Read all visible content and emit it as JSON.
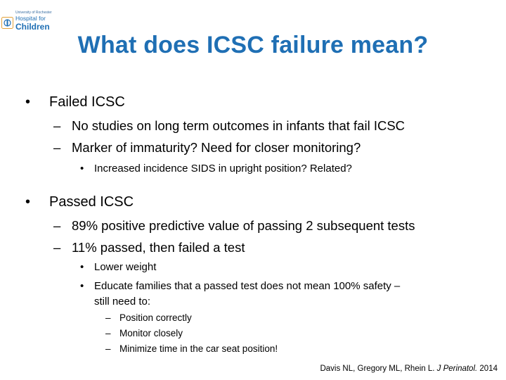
{
  "logo": {
    "line1": "University of Rochester",
    "line2": "Hospital for",
    "line3": "Children"
  },
  "title": "What does ICSC failure mean?",
  "bullets": {
    "failed": {
      "label": "Failed ICSC",
      "subs": [
        "No studies on long term outcomes in infants that fail ICSC",
        "Marker of immaturity? Need for closer monitoring?"
      ],
      "subsub": "Increased incidence SIDS in upright position? Related?"
    },
    "passed": {
      "label": "Passed ICSC",
      "subs": [
        "89% positive predictive value of passing 2 subsequent tests",
        "11% passed, then failed a test"
      ],
      "subsubs": [
        "Lower weight",
        "Educate families that a passed test does not mean 100% safety –",
        "still need to:"
      ],
      "actions": [
        "Position correctly",
        "Monitor closely",
        "Minimize time in the car seat position!"
      ]
    }
  },
  "citation": {
    "authors": "Davis NL, Gregory ML, Rhein L.",
    "journal": "J Perinatol.",
    "year": "2014"
  }
}
